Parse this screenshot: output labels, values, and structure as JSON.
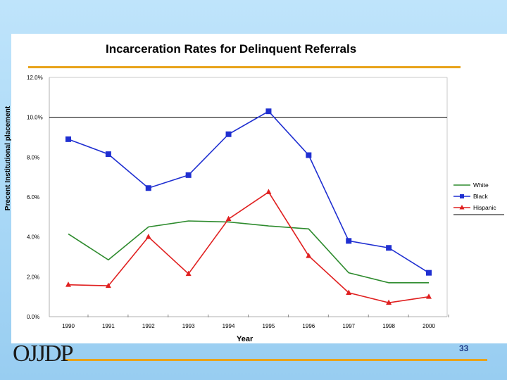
{
  "slide": {
    "logo_text": "OJJDP",
    "page_number": "33",
    "accent_color": "#e8a31b",
    "background_color": "#a9d8f6"
  },
  "chart_data": {
    "type": "line",
    "title": "Incarceration Rates for Delinquent Referrals",
    "xlabel": "Year",
    "ylabel": "Precent Institutional placement",
    "categories": [
      "1990",
      "1991",
      "1992",
      "1993",
      "1994",
      "1995",
      "1996",
      "1997",
      "1998",
      "2000"
    ],
    "yticks": [
      "0.0%",
      "2.0%",
      "4.0%",
      "6.0%",
      "8.0%",
      "10.0%",
      "12.0%"
    ],
    "ylim": [
      0,
      12
    ],
    "reference_line": 10,
    "legend_position": "right",
    "series": [
      {
        "name": "White",
        "color": "#2e8b2e",
        "marker": "none",
        "values": [
          4.15,
          2.85,
          4.5,
          4.8,
          4.75,
          4.55,
          4.4,
          2.2,
          1.7,
          1.7
        ]
      },
      {
        "name": "Black",
        "color": "#1f2fd1",
        "marker": "square",
        "values": [
          8.9,
          8.15,
          6.45,
          7.1,
          9.15,
          10.3,
          8.1,
          3.8,
          3.45,
          2.2
        ]
      },
      {
        "name": "Hispanic",
        "color": "#e02020",
        "marker": "triangle",
        "values": [
          1.6,
          1.55,
          4.0,
          2.15,
          4.9,
          6.25,
          3.05,
          1.2,
          0.7,
          1.0
        ]
      }
    ]
  }
}
